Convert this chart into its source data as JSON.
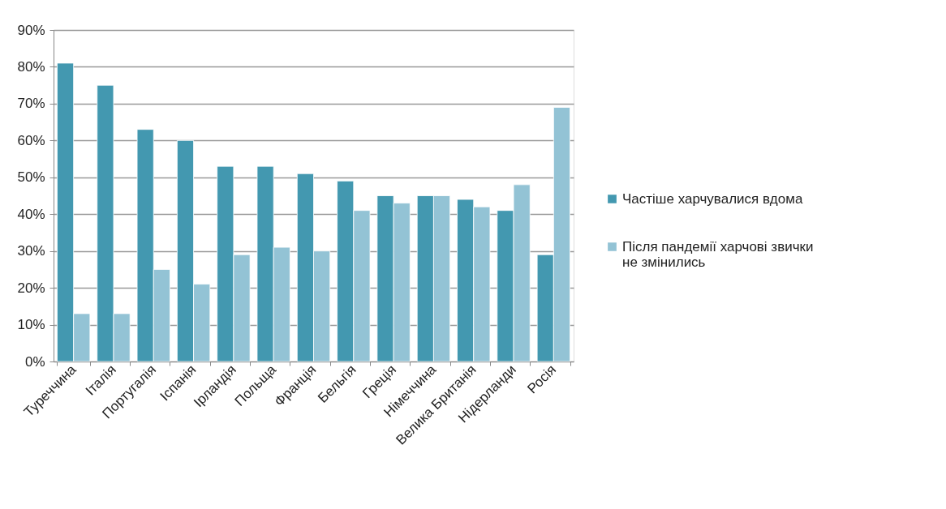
{
  "chart_data": {
    "type": "bar",
    "categories": [
      "Туреччина",
      "Італія",
      "Португалія",
      "Іспанія",
      "Ірландія",
      "Польща",
      "Франція",
      "Бельгія",
      "Греція",
      "Німеччина",
      "Велика Британія",
      "Нідерланди",
      "Росія"
    ],
    "series": [
      {
        "name": "Частіше харчувалися вдома",
        "color": "#4398b0",
        "values": [
          81,
          75,
          63,
          60,
          53,
          53,
          51,
          49,
          45,
          45,
          44,
          41,
          29
        ]
      },
      {
        "name": "Після пандемії харчові звички не змінились",
        "color": "#93c3d5",
        "values": [
          13,
          13,
          25,
          21,
          29,
          31,
          30,
          41,
          43,
          45,
          42,
          48,
          69
        ]
      }
    ],
    "ylim": [
      0,
      90
    ],
    "yticks": [
      {
        "value": 0,
        "label": "0%"
      },
      {
        "value": 10,
        "label": "10%"
      },
      {
        "value": 20,
        "label": "20%"
      },
      {
        "value": 30,
        "label": "30%"
      },
      {
        "value": 40,
        "label": "40%"
      },
      {
        "value": 50,
        "label": "50%"
      },
      {
        "value": 60,
        "label": "60%"
      },
      {
        "value": 70,
        "label": "70%"
      },
      {
        "value": 80,
        "label": "80%"
      },
      {
        "value": 90,
        "label": "90%"
      }
    ],
    "grid": "y",
    "legend": "right"
  }
}
